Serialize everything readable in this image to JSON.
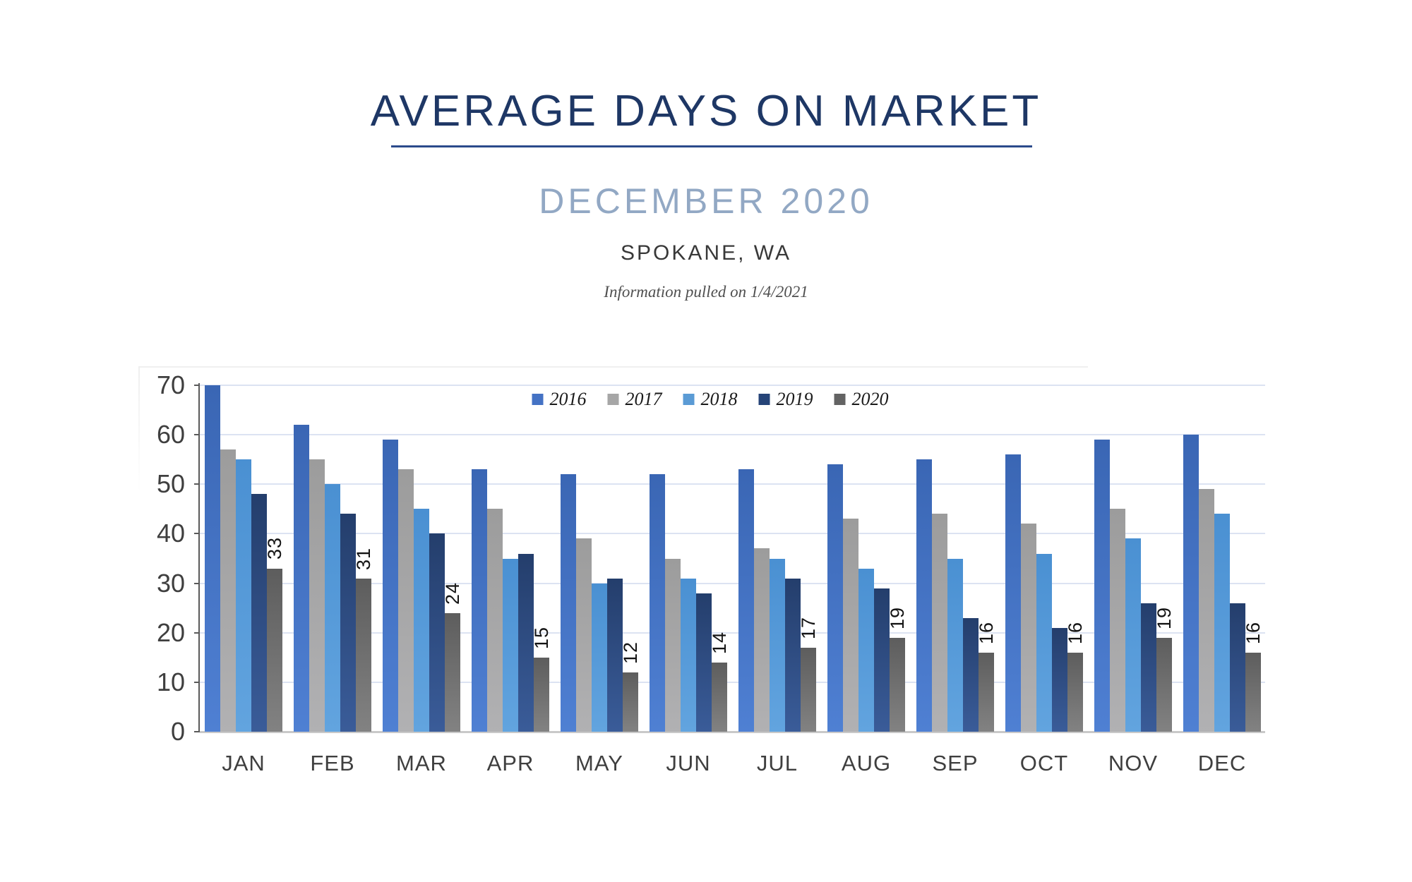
{
  "header": {
    "title": "AVERAGE DAYS ON MARKET",
    "subtitle": "DECEMBER 2020",
    "location": "SPOKANE, WA",
    "info_note": "Information pulled on 1/4/2021"
  },
  "chart_data": {
    "type": "bar",
    "title": "AVERAGE DAYS ON MARKET",
    "subtitle": "DECEMBER 2020",
    "location": "SPOKANE, WA",
    "note": "Information pulled on 1/4/2021",
    "categories": [
      "JAN",
      "FEB",
      "MAR",
      "APR",
      "MAY",
      "JUN",
      "JUL",
      "AUG",
      "SEP",
      "OCT",
      "NOV",
      "DEC"
    ],
    "series": [
      {
        "name": "2016",
        "color": "#4472C4",
        "gradient": [
          "#3A66B4",
          "#4F80D3"
        ],
        "values": [
          70,
          62,
          59,
          53,
          52,
          52,
          53,
          54,
          55,
          56,
          59,
          60
        ]
      },
      {
        "name": "2017",
        "color": "#A6A6A6",
        "gradient": [
          "#9C9C9C",
          "#B1B1B3"
        ],
        "values": [
          57,
          55,
          53,
          45,
          39,
          35,
          37,
          43,
          44,
          42,
          45,
          49
        ]
      },
      {
        "name": "2018",
        "color": "#5B9BD5",
        "gradient": [
          "#4A90D2",
          "#62A4DF"
        ],
        "values": [
          55,
          50,
          45,
          35,
          30,
          31,
          35,
          33,
          35,
          36,
          39,
          44
        ]
      },
      {
        "name": "2019",
        "color": "#264478",
        "gradient": [
          "#243E6C",
          "#3A5C99"
        ],
        "values": [
          48,
          44,
          40,
          36,
          31,
          28,
          31,
          29,
          23,
          21,
          26,
          26
        ]
      },
      {
        "name": "2020",
        "color": "#636363",
        "gradient": [
          "#5D5D5D",
          "#828282"
        ],
        "values": [
          33,
          31,
          24,
          15,
          12,
          14,
          17,
          19,
          16,
          16,
          19,
          16
        ],
        "data_labels": true
      }
    ],
    "ylim": [
      0,
      70
    ],
    "ytick_step": 10,
    "grid": true,
    "legend_position": "top-inside",
    "gridline_color": "#DCE3F2",
    "axis_line_color": "#5A5A5A",
    "baseline_color": "#C9C9C9"
  }
}
